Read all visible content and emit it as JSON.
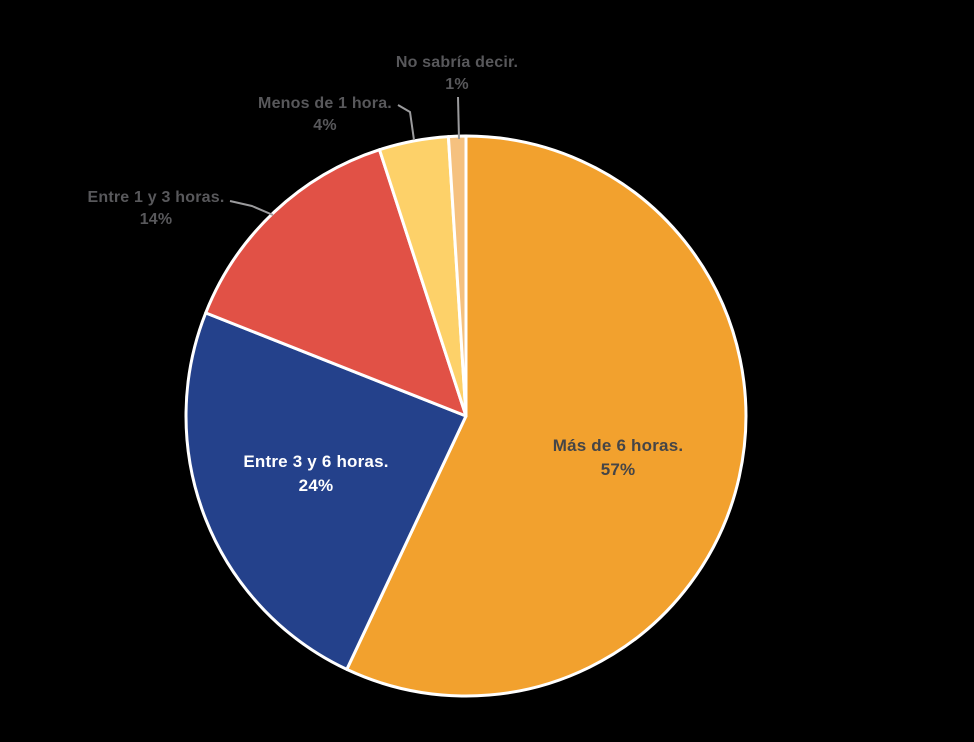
{
  "canvas": {
    "background": "#000000"
  },
  "chart_data": {
    "type": "pie",
    "direction": "clockwise",
    "start_angle_deg": 0,
    "total": 100,
    "stroke_color": "#FFFFFF",
    "leader_line_color": "#9B9B9D",
    "slices": [
      {
        "label": "Más de 6 horas.",
        "value": 57,
        "pct_label": "57%",
        "color": "#F2A12E",
        "label_color": "#454547",
        "label_placement": "inside"
      },
      {
        "label": "Entre 3 y 6 horas.",
        "value": 24,
        "pct_label": "24%",
        "color": "#24418B",
        "label_color": "#FFFFFF",
        "label_placement": "inside"
      },
      {
        "label": "Entre 1 y 3 horas.",
        "value": 14,
        "pct_label": "14%",
        "color": "#E15146",
        "label_color": "#58585B",
        "label_placement": "outside"
      },
      {
        "label": "Menos de 1 hora.",
        "value": 4,
        "pct_label": "4%",
        "color": "#FDD169",
        "label_color": "#58585B",
        "label_placement": "outside"
      },
      {
        "label": "No sabría decir.",
        "value": 1,
        "pct_label": "1%",
        "color": "#F5C17F",
        "label_color": "#58585B",
        "label_placement": "outside"
      }
    ]
  }
}
